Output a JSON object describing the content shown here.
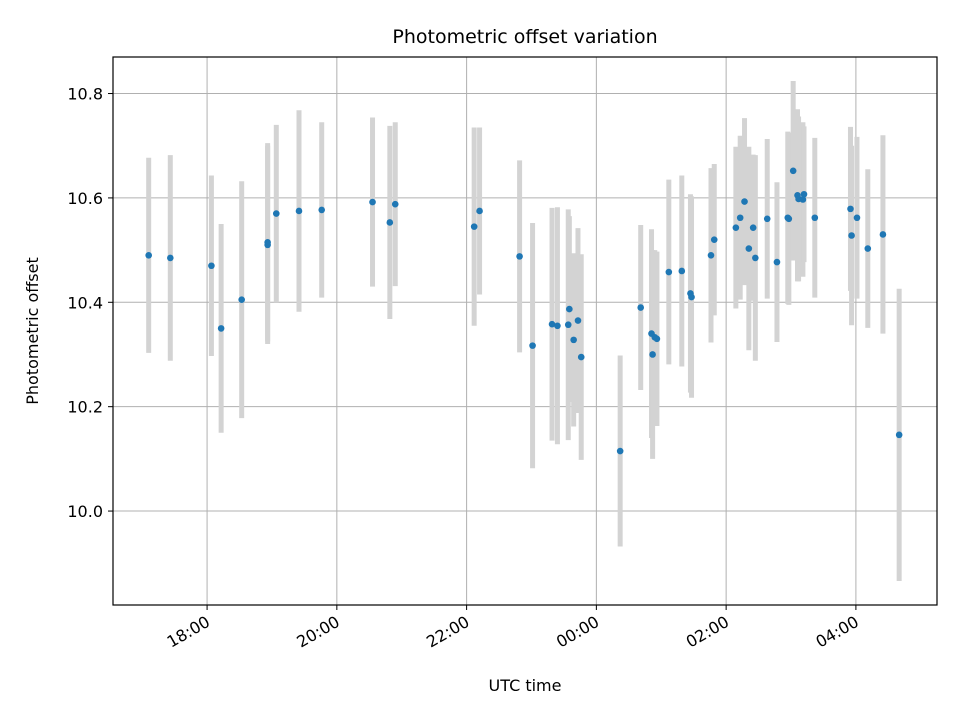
{
  "chart_data": {
    "type": "scatter",
    "title": "Photometric offset variation",
    "xlabel": "UTC time",
    "ylabel": "Photometric offset",
    "x_tick_labels": [
      "18:00",
      "20:00",
      "22:00",
      "00:00",
      "02:00",
      "04:00"
    ],
    "y_tick_labels": [
      "10.0",
      "10.2",
      "10.4",
      "10.6",
      "10.8"
    ],
    "x_ticks": [
      "18:00",
      "20:00",
      "22:00",
      "24:00",
      "26:00",
      "28:00"
    ],
    "y_ticks": [
      10.0,
      10.2,
      10.4,
      10.6,
      10.8
    ],
    "xlim": [
      "16:33",
      "29:15"
    ],
    "ylim": [
      9.82,
      10.87
    ],
    "grid": true,
    "colors": {
      "point": "#1f77b4",
      "errorbar": "#d3d3d3",
      "grid": "#b0b0b0"
    },
    "series": [
      {
        "marker": "dot",
        "x": [
          "17:06",
          "17:26",
          "18:04",
          "18:13",
          "18:32",
          "18:56",
          "18:56",
          "19:04",
          "19:25",
          "19:46",
          "20:33",
          "20:49",
          "20:54",
          "22:07",
          "22:12",
          "22:49",
          "23:01",
          "23:19",
          "23:24",
          "23:34",
          "23:35",
          "23:39",
          "23:43",
          "23:46",
          "24:22",
          "24:41",
          "24:51",
          "24:52",
          "24:54",
          "24:56",
          "25:07",
          "25:19",
          "25:27",
          "25:28",
          "25:46",
          "25:49",
          "26:09",
          "26:13",
          "26:17",
          "26:21",
          "26:25",
          "26:27",
          "26:38",
          "26:47",
          "26:57",
          "26:58",
          "27:02",
          "27:06",
          "27:07",
          "27:11",
          "27:12",
          "27:22",
          "27:55",
          "27:56",
          "28:01",
          "28:11",
          "28:25",
          "28:40"
        ],
        "y": [
          10.49,
          10.485,
          10.47,
          10.35,
          10.405,
          10.51,
          10.515,
          10.57,
          10.575,
          10.577,
          10.592,
          10.553,
          10.588,
          10.545,
          10.575,
          10.488,
          10.317,
          10.358,
          10.355,
          10.357,
          10.387,
          10.328,
          10.365,
          10.295,
          10.115,
          10.39,
          10.34,
          10.3,
          10.333,
          10.33,
          10.458,
          10.46,
          10.417,
          10.41,
          10.49,
          10.52,
          10.543,
          10.562,
          10.593,
          10.503,
          10.543,
          10.485,
          10.56,
          10.477,
          10.562,
          10.56,
          10.652,
          10.605,
          10.598,
          10.597,
          10.607,
          10.562,
          10.579,
          10.528,
          10.562,
          10.503,
          10.53,
          10.146
        ],
        "yerr": [
          0.187,
          0.197,
          0.173,
          0.2,
          0.227,
          0.19,
          0.19,
          0.17,
          0.193,
          0.168,
          0.162,
          0.185,
          0.157,
          0.19,
          0.16,
          0.184,
          0.235,
          0.223,
          0.227,
          0.221,
          0.178,
          0.166,
          0.177,
          0.197,
          0.183,
          0.158,
          0.2,
          0.2,
          0.167,
          0.167,
          0.177,
          0.183,
          0.19,
          0.193,
          0.167,
          0.145,
          0.155,
          0.157,
          0.16,
          0.195,
          0.14,
          0.197,
          0.153,
          0.153,
          0.165,
          0.165,
          0.172,
          0.165,
          0.158,
          0.148,
          0.13,
          0.153,
          0.157,
          0.172,
          0.155,
          0.152,
          0.19,
          0.28
        ]
      }
    ]
  }
}
